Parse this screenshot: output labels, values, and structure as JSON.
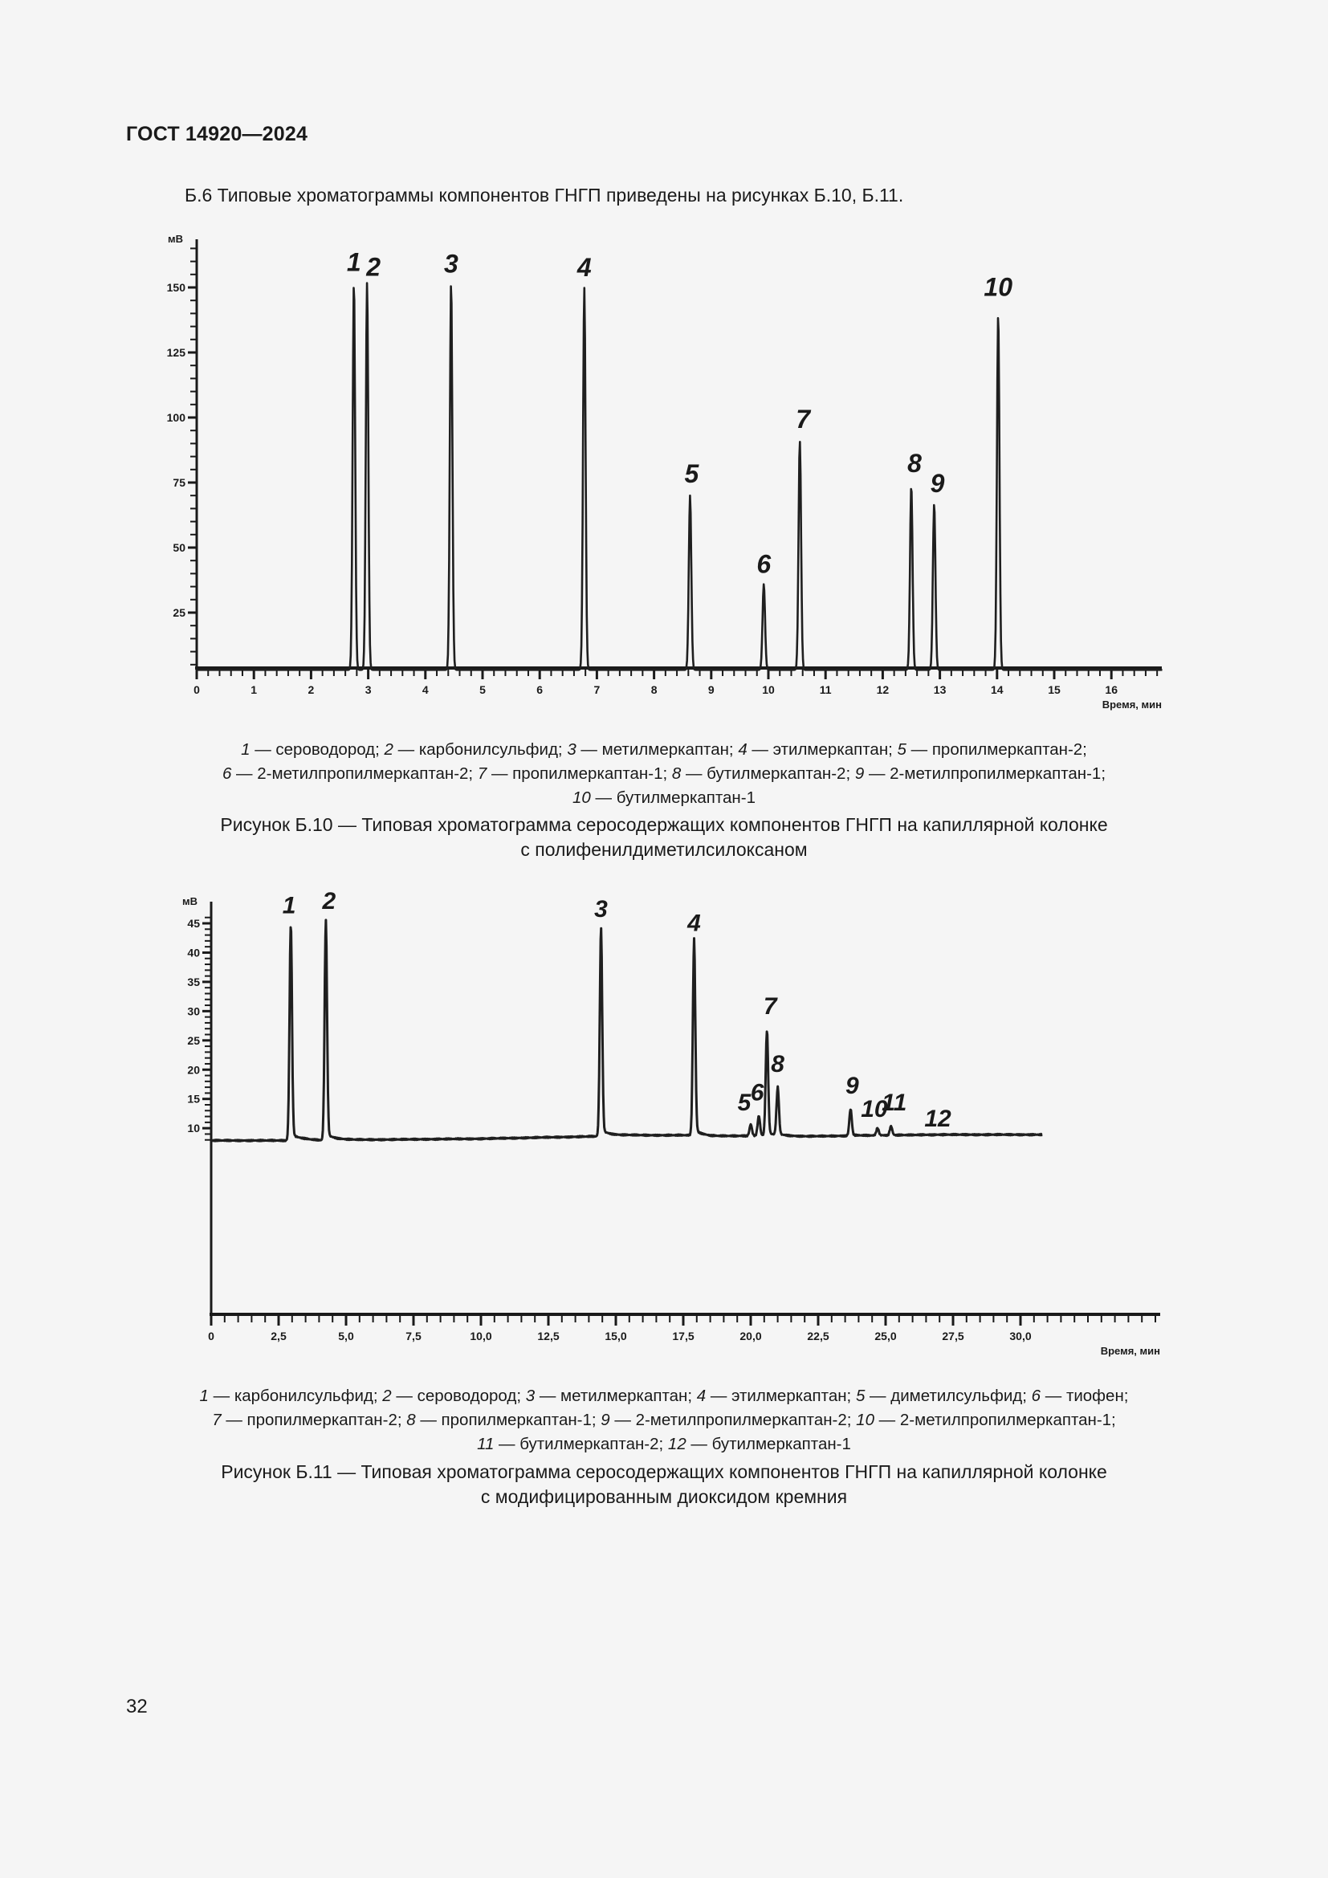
{
  "header": {
    "doc_code": "ГОСТ 14920—2024"
  },
  "intro_text": "Б.6 Типовые хроматограммы компонентов ГНГП приведены на рисунках Б.10, Б.11.",
  "figure_b10": {
    "legend_lines": [
      [
        {
          "n": "1",
          "t": " — сероводород; "
        },
        {
          "n": "2",
          "t": " — карбонилсульфид; "
        },
        {
          "n": "3",
          "t": " — метилмеркаптан; "
        },
        {
          "n": "4",
          "t": " — этилмеркаптан; "
        },
        {
          "n": "5",
          "t": " — пропилмеркаптан-2;"
        }
      ],
      [
        {
          "n": "6",
          "t": " — 2-метилпропилмеркаптан-2; "
        },
        {
          "n": "7",
          "t": " — пропилмеркаптан-1; "
        },
        {
          "n": "8",
          "t": " — бутилмеркаптан-2; "
        },
        {
          "n": "9",
          "t": " — 2-метилпропилмеркаптан-1;"
        }
      ],
      [
        {
          "n": "10",
          "t": " — бутилмеркаптан-1"
        }
      ]
    ],
    "caption_line1": "Рисунок Б.10 — Типовая хроматограмма серосодержащих компонентов ГНГП на капиллярной колонке",
    "caption_line2": "с полифенилдиметилсилоксаном"
  },
  "figure_b11": {
    "legend_lines": [
      [
        {
          "n": "1",
          "t": " — карбонилсульфид; "
        },
        {
          "n": "2",
          "t": " — сероводород; "
        },
        {
          "n": "3",
          "t": " — метилмеркаптан; "
        },
        {
          "n": "4",
          "t": " — этилмеркаптан; "
        },
        {
          "n": "5",
          "t": " — диметилсульфид; "
        },
        {
          "n": "6",
          "t": " — тиофен;"
        }
      ],
      [
        {
          "n": "7",
          "t": " — пропилмеркаптан-2; "
        },
        {
          "n": "8",
          "t": " — пропилмеркаптан-1; "
        },
        {
          "n": "9",
          "t": " — 2-метилпропилмеркаптан-2; "
        },
        {
          "n": "10",
          "t": " — 2-метилпропилмеркаптан-1;"
        }
      ],
      [
        {
          "n": "11",
          "t": " — бутилмеркаптан-2; "
        },
        {
          "n": "12",
          "t": " — бутилмеркаптан-1"
        }
      ]
    ],
    "caption_line1": "Рисунок Б.11 — Типовая хроматограмма серосодержащих компонентов ГНГП на капиллярной колонке",
    "caption_line2": "с модифицированным диоксидом кремния"
  },
  "page_number": "32",
  "chart_data": [
    {
      "type": "line",
      "title": "Рисунок Б.10",
      "xlabel": "Время, мин",
      "ylabel": "мВ",
      "xlim": [
        0,
        16.9
      ],
      "ylim": [
        0,
        165
      ],
      "x_ticks": [
        "0",
        "1",
        "2",
        "3",
        "4",
        "5",
        "6",
        "7",
        "8",
        "9",
        "10",
        "11",
        "12",
        "13",
        "14",
        "15",
        "16"
      ],
      "y_ticks": [
        "25",
        "50",
        "75",
        "100",
        "125",
        "150"
      ],
      "grid": false,
      "series": [
        {
          "name": "peaks",
          "peaks": [
            {
              "label": "1",
              "x": 2.75,
              "y": 152
            },
            {
              "label": "2",
              "x": 2.98,
              "y": 152
            },
            {
              "label": "3",
              "x": 4.45,
              "y": 152
            },
            {
              "label": "4",
              "x": 6.78,
              "y": 150
            },
            {
              "label": "5",
              "x": 8.63,
              "y": 70
            },
            {
              "label": "6",
              "x": 9.92,
              "y": 36
            },
            {
              "label": "7",
              "x": 10.55,
              "y": 91
            },
            {
              "label": "8",
              "x": 12.5,
              "y": 74
            },
            {
              "label": "9",
              "x": 12.9,
              "y": 67
            },
            {
              "label": "10",
              "x": 14.02,
              "y": 140
            }
          ]
        }
      ]
    },
    {
      "type": "line",
      "title": "Рисунок Б.11",
      "xlabel": "Время, мин",
      "ylabel": "мВ",
      "xlim": [
        0,
        30.8
      ],
      "ylim": [
        7.5,
        47
      ],
      "x_ticks": [
        "0",
        "2,5",
        "5,0",
        "7,5",
        "10,0",
        "12,5",
        "15,0",
        "17,5",
        "20,0",
        "22,5",
        "25,0",
        "27,5",
        "30,0"
      ],
      "y_ticks": [
        "10",
        "15",
        "20",
        "25",
        "30",
        "35",
        "40",
        "45"
      ],
      "grid": false,
      "series": [
        {
          "name": "peaks",
          "peaks": [
            {
              "label": "1",
              "x": 2.95,
              "y": 44.5
            },
            {
              "label": "2",
              "x": 4.25,
              "y": 44.7
            },
            {
              "label": "3",
              "x": 14.45,
              "y": 43.6
            },
            {
              "label": "4",
              "x": 17.9,
              "y": 41.5
            },
            {
              "label": "5",
              "x": 20.0,
              "y": 10.6
            },
            {
              "label": "6",
              "x": 20.3,
              "y": 12.0
            },
            {
              "label": "7",
              "x": 20.6,
              "y": 26.5
            },
            {
              "label": "8",
              "x": 21.0,
              "y": 16.6
            },
            {
              "label": "9",
              "x": 23.7,
              "y": 13.2
            },
            {
              "label": "10",
              "x": 24.7,
              "y": 10.0
            },
            {
              "label": "11",
              "x": 25.2,
              "y": 10.3
            },
            {
              "label": "12",
              "x": 26.4,
              "y": 8.9
            }
          ]
        }
      ],
      "baseline": [
        [
          0,
          7.9
        ],
        [
          2.8,
          7.9
        ],
        [
          3.4,
          8.0
        ],
        [
          4.1,
          7.9
        ],
        [
          5,
          8.0
        ],
        [
          10,
          8.2
        ],
        [
          14.2,
          8.6
        ],
        [
          15.5,
          8.8
        ],
        [
          17.7,
          8.8
        ],
        [
          18.5,
          8.6
        ],
        [
          19.8,
          8.7
        ],
        [
          22,
          8.6
        ],
        [
          23.5,
          8.7
        ],
        [
          25.5,
          8.8
        ],
        [
          27,
          8.9
        ],
        [
          30.8,
          8.9
        ]
      ]
    }
  ]
}
